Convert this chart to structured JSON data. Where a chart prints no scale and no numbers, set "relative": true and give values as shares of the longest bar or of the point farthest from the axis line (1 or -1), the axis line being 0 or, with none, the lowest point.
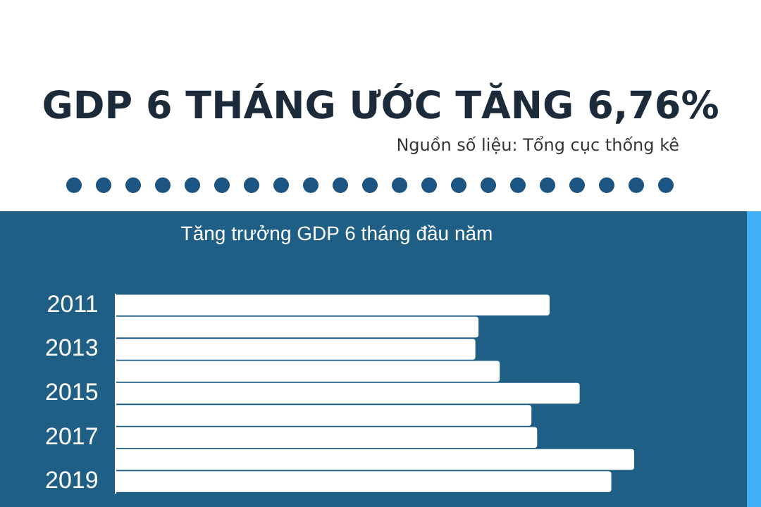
{
  "chart_data": {
    "type": "bar",
    "orientation": "horizontal",
    "relative": true,
    "title": "GDP 6 THÁNG ƯỚC TĂNG 6,76%",
    "subtitle": "Tăng trưởng GDP 6 tháng đầu năm",
    "annotations": [
      "Nguồn số liệu: Tổng cục thống kê"
    ],
    "categories": [
      "2011",
      null,
      "2013",
      null,
      "2015",
      null,
      "2017",
      null,
      "2019"
    ],
    "values": [
      0.837,
      0.7,
      0.694,
      0.741,
      0.895,
      0.802,
      0.813,
      1,
      0.956
    ],
    "color": "#ffffff",
    "legend": false
  }
}
